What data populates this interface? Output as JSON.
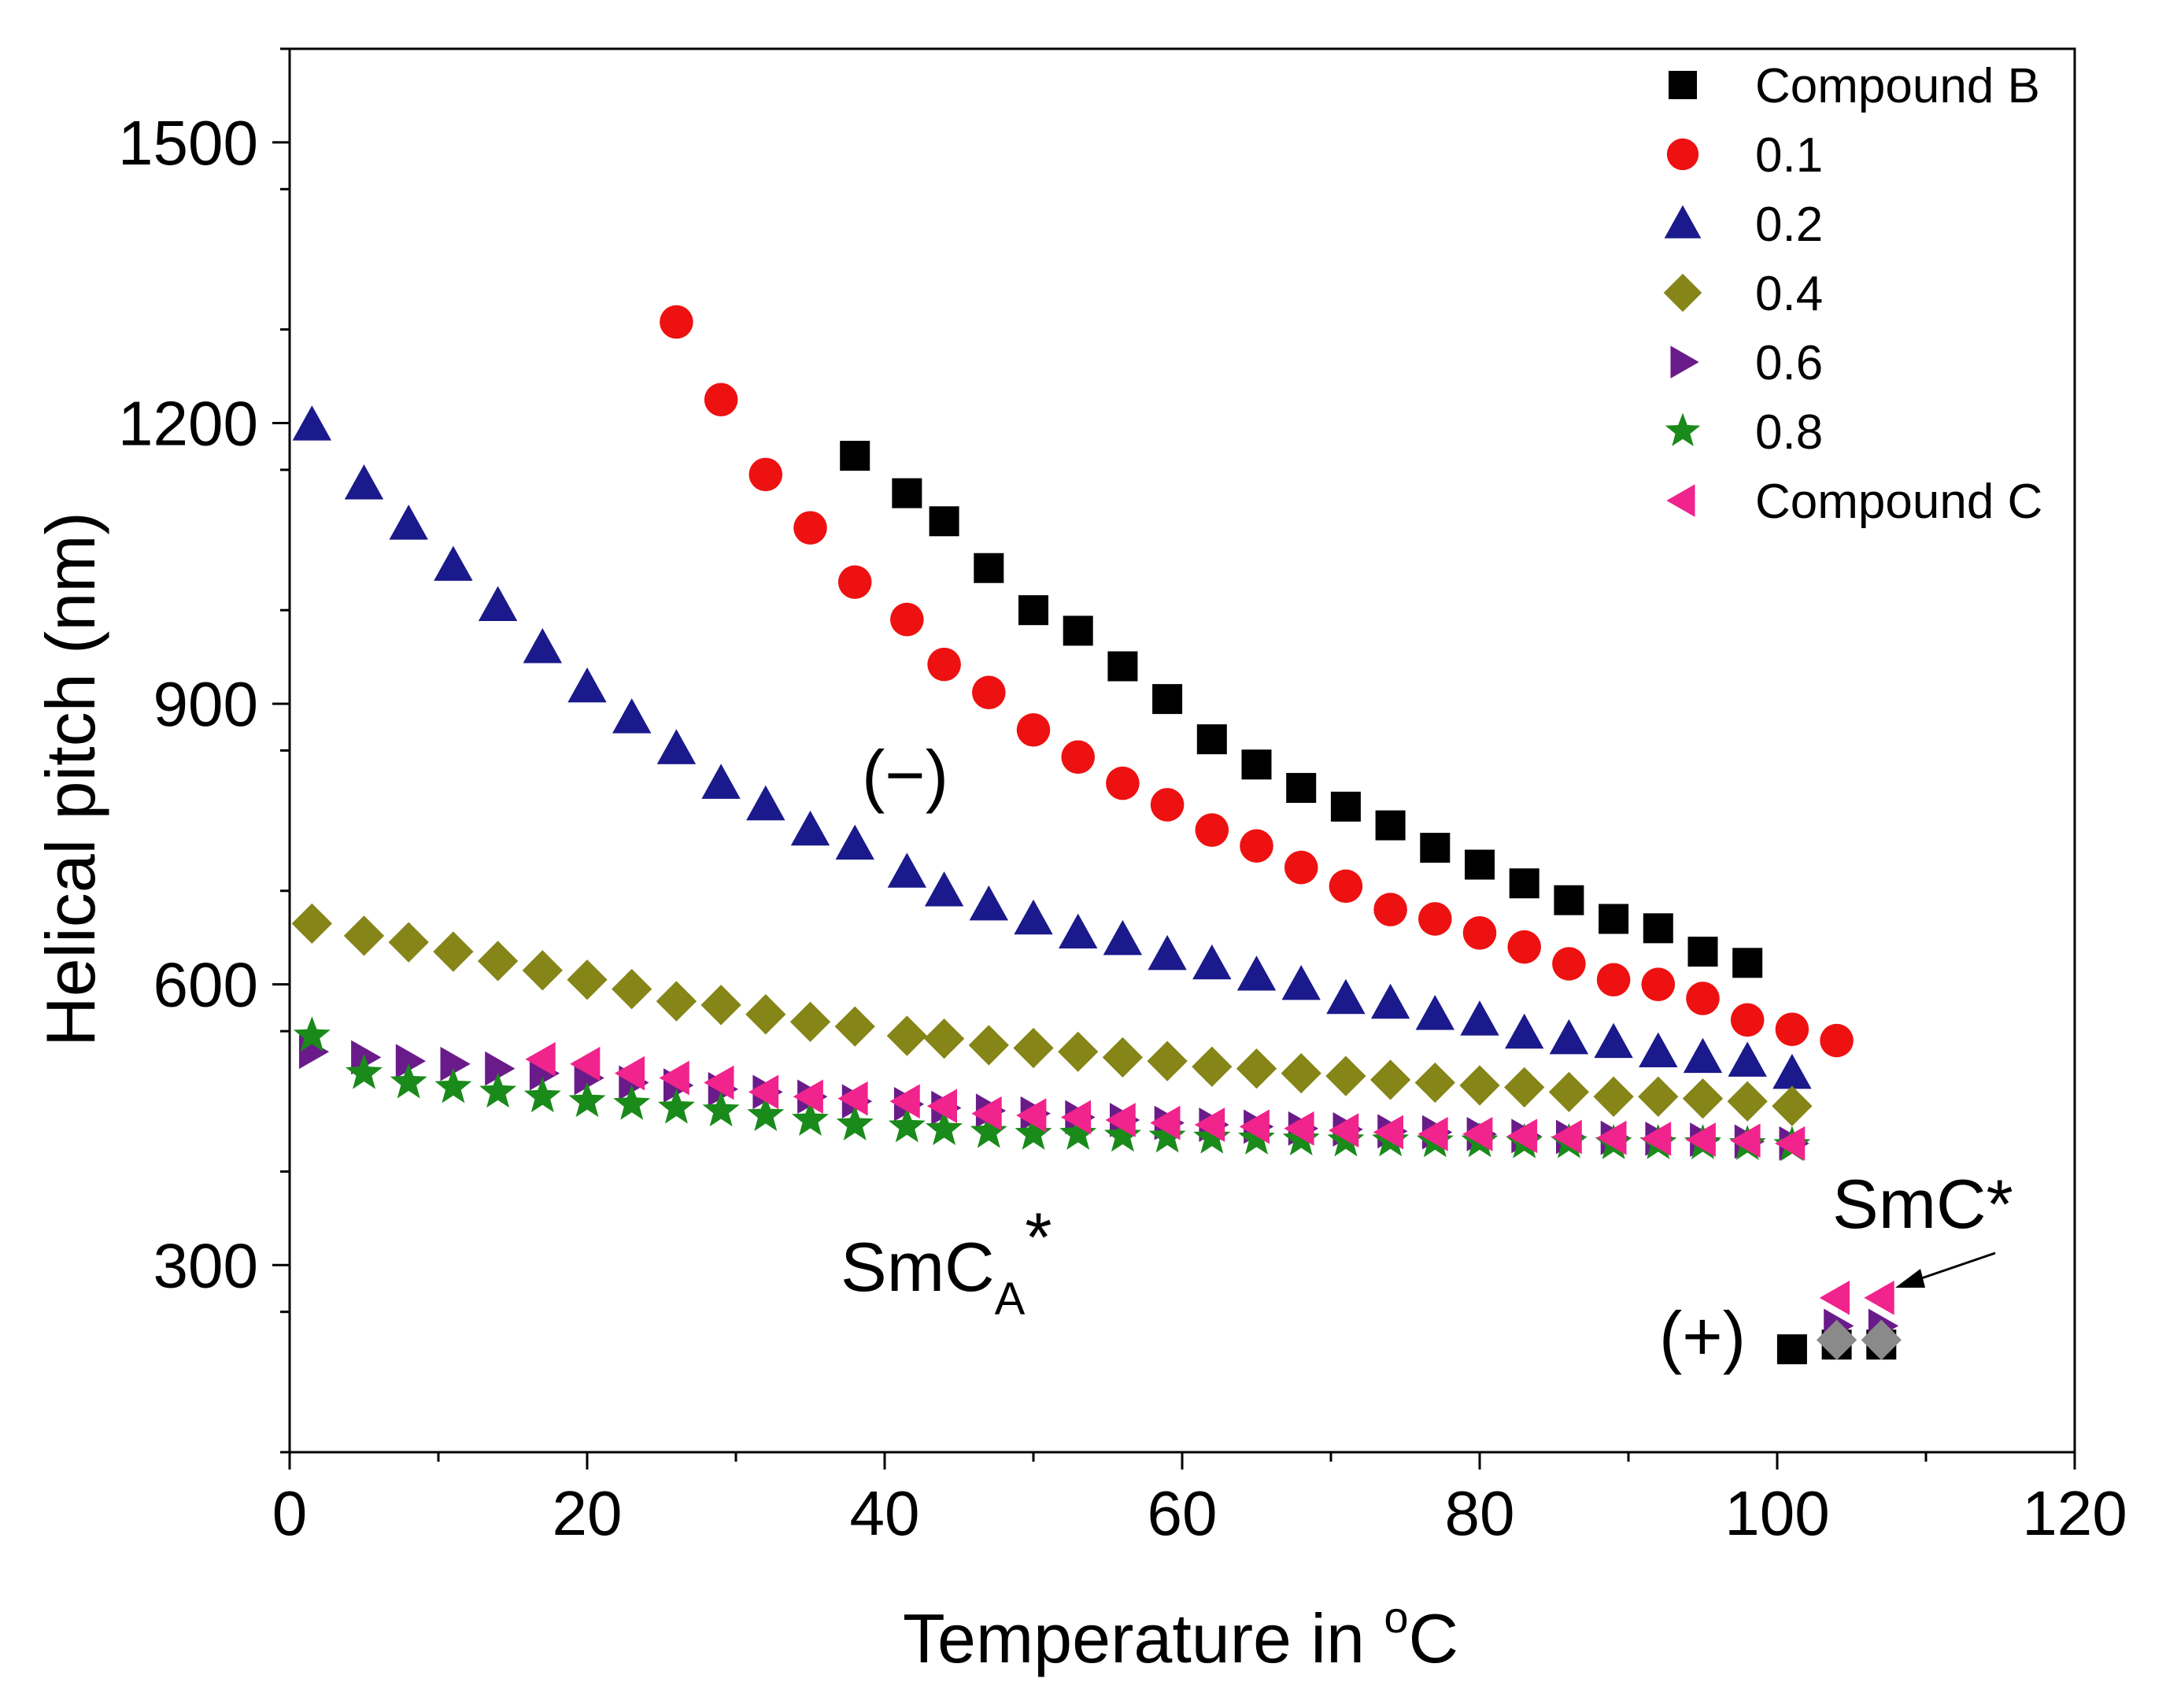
{
  "chart_data": {
    "type": "scatter",
    "xlabel": "Temperature in ",
    "xlabel_sup": "o",
    "xlabel_unit": "C",
    "ylabel": "Helical pitch (nm)",
    "xlim": [
      0,
      120
    ],
    "ylim": [
      100,
      1600
    ],
    "xticks": [
      0,
      20,
      40,
      60,
      80,
      100,
      120
    ],
    "yticks": [
      300,
      600,
      900,
      1200,
      1500
    ],
    "legend_position": "top-right",
    "annotations": {
      "minus": "(−)",
      "plus": "(+)",
      "smca_main": "SmC",
      "smca_sub": "A",
      "smca_star": "*",
      "smc": "SmC*"
    },
    "series": [
      {
        "name": "Compound B",
        "marker": "square",
        "color": "#000000",
        "x": [
          38,
          41.5,
          44,
          47,
          50,
          53,
          56,
          59,
          62,
          65,
          68,
          71,
          74,
          77,
          80,
          83,
          86,
          89,
          92,
          95,
          98,
          101,
          104,
          107
        ],
        "y": [
          1165,
          1125,
          1095,
          1045,
          1000,
          978,
          940,
          905,
          862,
          835,
          810,
          790,
          770,
          746,
          728,
          708,
          690,
          670,
          660,
          635,
          623,
          210,
          215,
          215
        ]
      },
      {
        "name": "0.1",
        "marker": "circle",
        "color": "#ee1111",
        "x": [
          26,
          29,
          32,
          35,
          38,
          41.5,
          44,
          47,
          50,
          53,
          56,
          59,
          62,
          65,
          68,
          71,
          74,
          77,
          80,
          83,
          86,
          89,
          92,
          95,
          98,
          101,
          104
        ],
        "y": [
          1308,
          1225,
          1145,
          1088,
          1030,
          990,
          942,
          912,
          872,
          843,
          815,
          792,
          765,
          748,
          725,
          705,
          680,
          670,
          655,
          640,
          622,
          605,
          600,
          585,
          562,
          552,
          540
        ]
      },
      {
        "name": "0.2",
        "marker": "triangle-up",
        "color": "#1a1a8c",
        "x": [
          1.5,
          5,
          8,
          11,
          14,
          17,
          20,
          23,
          26,
          29,
          32,
          35,
          38,
          41.5,
          44,
          47,
          50,
          53,
          56,
          59,
          62,
          65,
          68,
          71,
          74,
          77,
          80,
          83,
          86,
          89,
          92,
          95,
          98,
          101
        ],
        "y": [
          1198,
          1135,
          1092,
          1048,
          1005,
          960,
          918,
          885,
          852,
          815,
          792,
          765,
          750,
          720,
          700,
          685,
          670,
          655,
          648,
          632,
          622,
          610,
          600,
          585,
          580,
          568,
          562,
          548,
          542,
          538,
          528,
          522,
          518,
          505
        ]
      },
      {
        "name": "0.4",
        "marker": "diamond",
        "color": "#858518",
        "x": [
          1.5,
          5,
          8,
          11,
          14,
          17,
          20,
          23,
          26,
          29,
          32,
          35,
          38,
          41.5,
          44,
          47,
          50,
          53,
          56,
          59,
          62,
          65,
          68,
          71,
          74,
          77,
          80,
          83,
          86,
          89,
          92,
          95,
          98,
          101
        ],
        "y": [
          665,
          652,
          645,
          635,
          625,
          615,
          605,
          595,
          582,
          578,
          568,
          560,
          555,
          545,
          542,
          535,
          532,
          528,
          522,
          518,
          512,
          510,
          505,
          502,
          498,
          495,
          492,
          490,
          485,
          480,
          480,
          478,
          475,
          470
        ]
      },
      {
        "name": "0.6",
        "marker": "triangle-right",
        "color": "#6a1b8a",
        "x": [
          1.5,
          5,
          8,
          11,
          14,
          17,
          20,
          23,
          26,
          29,
          32,
          35,
          38,
          41.5,
          44,
          47,
          50,
          53,
          56,
          59,
          62,
          65,
          68,
          71,
          74,
          77,
          80,
          83,
          86,
          89,
          92,
          95,
          98,
          101,
          104,
          107
        ],
        "y": [
          528,
          522,
          518,
          515,
          510,
          505,
          500,
          495,
          492,
          488,
          485,
          480,
          475,
          472,
          468,
          465,
          462,
          458,
          455,
          452,
          450,
          448,
          446,
          445,
          443,
          442,
          440,
          438,
          437,
          436,
          435,
          434,
          432,
          430,
          235,
          235
        ]
      },
      {
        "name": "0.8",
        "marker": "star",
        "color": "#1a8a1a",
        "x": [
          1.5,
          5,
          8,
          11,
          14,
          17,
          20,
          23,
          26,
          29,
          32,
          35,
          38,
          41.5,
          44,
          47,
          50,
          53,
          56,
          59,
          62,
          65,
          68,
          71,
          74,
          77,
          80,
          83,
          86,
          89,
          92,
          95,
          98,
          101
        ],
        "y": [
          545,
          505,
          495,
          490,
          485,
          480,
          475,
          472,
          468,
          465,
          460,
          455,
          450,
          448,
          445,
          442,
          440,
          440,
          438,
          437,
          436,
          435,
          434,
          433,
          433,
          432,
          432,
          431,
          431,
          430,
          430,
          430,
          429,
          428
        ]
      },
      {
        "name": "Compound C",
        "marker": "triangle-left",
        "color": "#f0248c",
        "x": [
          17,
          20,
          23,
          26,
          29,
          32,
          35,
          38,
          41.5,
          44,
          47,
          50,
          53,
          56,
          59,
          62,
          65,
          68,
          71,
          74,
          77,
          80,
          83,
          86,
          89,
          92,
          95,
          98,
          101,
          104,
          107
        ],
        "y": [
          520,
          515,
          505,
          500,
          495,
          485,
          480,
          478,
          475,
          470,
          462,
          460,
          458,
          455,
          452,
          450,
          448,
          446,
          444,
          442,
          440,
          440,
          438,
          437,
          436,
          435,
          434,
          433,
          430,
          265,
          265
        ]
      },
      {
        "name": "",
        "marker": "diamond",
        "color": "#8a8a8a",
        "x": [
          104,
          107
        ],
        "y": [
          220,
          220
        ]
      }
    ]
  }
}
